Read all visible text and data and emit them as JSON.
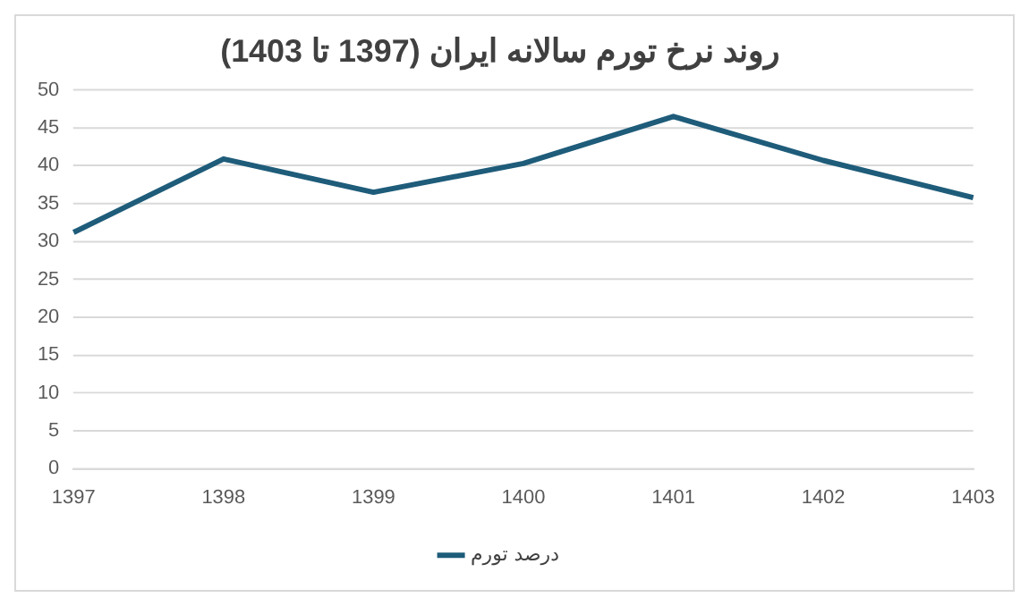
{
  "chart_data": {
    "type": "line",
    "title": "روند نرخ تورم سالانه ایران (1397 تا 1403)",
    "categories": [
      "1397",
      "1398",
      "1399",
      "1400",
      "1401",
      "1402",
      "1403"
    ],
    "series": [
      {
        "name": "درصد تورم",
        "color": "#1e5c7a",
        "values": [
          31.2,
          40.9,
          36.5,
          40.3,
          46.5,
          40.7,
          35.8
        ]
      }
    ],
    "ylim": [
      0,
      50
    ],
    "yticks": [
      0,
      5,
      10,
      15,
      20,
      25,
      30,
      35,
      40,
      45,
      50
    ],
    "grid": "y",
    "legend": "bottom",
    "marker": "none",
    "line_style": "solid"
  }
}
